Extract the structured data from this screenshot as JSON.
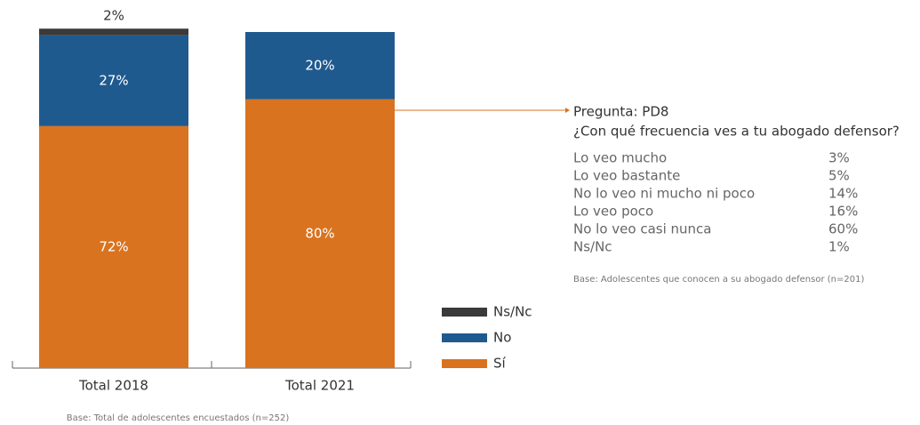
{
  "chart_data": {
    "type": "stacked_bar",
    "categories": [
      "Total 2018",
      "Total 2021"
    ],
    "series": [
      {
        "name": "Sí",
        "color": "#d9731f",
        "values": [
          72,
          80
        ],
        "value_labels": [
          "72%",
          "80%"
        ]
      },
      {
        "name": "No",
        "color": "#1f5a8f",
        "values": [
          27,
          20
        ],
        "value_labels": [
          "27%",
          "20%"
        ]
      },
      {
        "name": "Ns/Nc",
        "color": "#3a3a3a",
        "values": [
          2,
          0
        ],
        "value_labels": [
          "2%",
          null
        ]
      }
    ],
    "ylim": [
      0,
      100
    ],
    "note": "Base: Total de adolescentes encuestados (n=252)",
    "question": {
      "title": "Pregunta: PD8",
      "text": "¿Con qué frecuencia ves a tu abogado defensor?",
      "rows": [
        [
          "Lo veo mucho",
          "3%"
        ],
        [
          "Lo veo bastante",
          "5%"
        ],
        [
          "No lo veo ni mucho ni poco",
          "14%"
        ],
        [
          "Lo veo poco",
          "16%"
        ],
        [
          "No lo veo casi nunca",
          "60%"
        ],
        [
          "Ns/Nc",
          "1%"
        ]
      ],
      "note": "Base: Adolescentes que conocen a su abogado defensor (n=201)"
    }
  }
}
